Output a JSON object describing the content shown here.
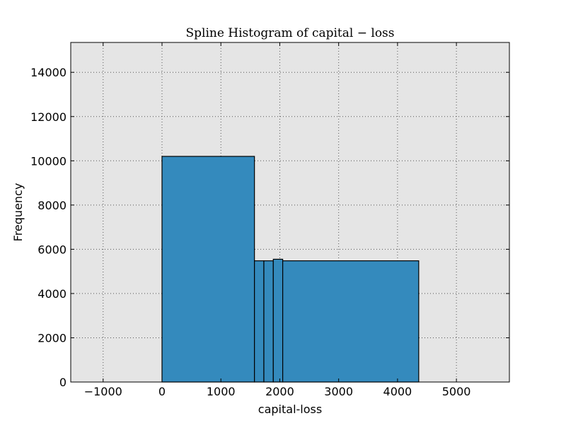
{
  "chart_data": {
    "type": "bar",
    "title": "Spline Histogram of capital − loss",
    "xlabel": "capital-loss",
    "ylabel": "Frequency",
    "xlim": [
      -1550,
      5900
    ],
    "ylim": [
      0,
      15350
    ],
    "xticks": [
      -1000,
      0,
      1000,
      2000,
      3000,
      4000,
      5000
    ],
    "xtick_labels": [
      "−1000",
      "0",
      "1000",
      "2000",
      "3000",
      "4000",
      "5000"
    ],
    "yticks": [
      0,
      2000,
      4000,
      6000,
      8000,
      10000,
      12000,
      14000
    ],
    "ytick_labels": [
      "0",
      "2000",
      "4000",
      "6000",
      "8000",
      "10000",
      "12000",
      "14000"
    ],
    "grid": true,
    "bins": [
      {
        "x0": 0,
        "x1": 1570,
        "count": 10200
      },
      {
        "x0": 1570,
        "x1": 1730,
        "count": 5480
      },
      {
        "x0": 1730,
        "x1": 1890,
        "count": 5480
      },
      {
        "x0": 1890,
        "x1": 2050,
        "count": 5550
      },
      {
        "x0": 2050,
        "x1": 4360,
        "count": 5480
      }
    ],
    "colors": {
      "bar_fill": "#348abd",
      "bar_edge": "#000000",
      "plot_bg": "#e5e5e5",
      "grid": "#555555"
    }
  }
}
